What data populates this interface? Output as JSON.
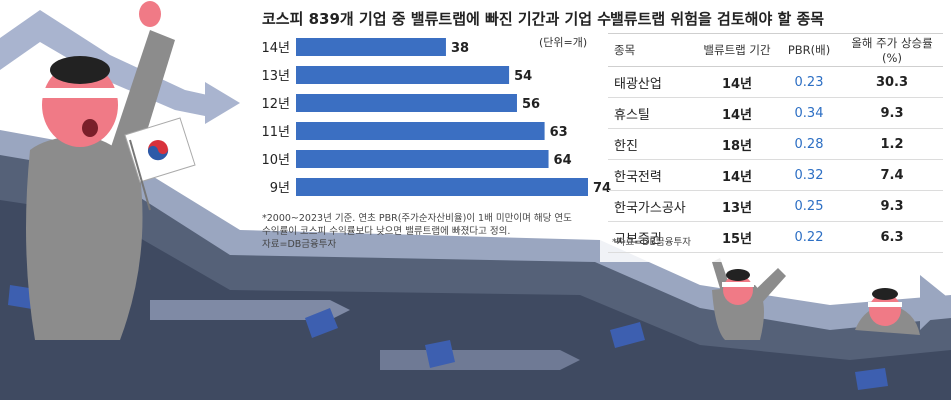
{
  "chart_data": [
    {
      "type": "bar",
      "title": "코스피 839개 기업 중 밸류트랩에 빠진 기간과 기업 수",
      "unit": "(단위=개)",
      "categories": [
        "14년",
        "13년",
        "12년",
        "11년",
        "10년",
        "9년"
      ],
      "values": [
        38,
        54,
        56,
        63,
        64,
        74
      ],
      "bar_color": "#3b6fc2",
      "xlim": [
        0,
        74
      ],
      "orientation": "horizontal",
      "note": [
        "*2000~2023년 기준. 연초 PBR(주가순자산비율)이 1배 미만이며 해당 연도",
        "수익률이 코스피 수익률보다 낮으면 밸류트랩에 빠졌다고 정의.",
        "자료=DB금융투자"
      ]
    },
    {
      "type": "table",
      "title": "밸류트랩 위험을 검토해야 할 종목",
      "columns": [
        "종목",
        "밸류트랩 기간",
        "PBR(배)",
        "올해 주가 상승률(%)"
      ],
      "rows": [
        [
          "태광산업",
          "14년",
          "0.23",
          "30.3"
        ],
        [
          "휴스틸",
          "14년",
          "0.34",
          "9.3"
        ],
        [
          "한진",
          "18년",
          "0.28",
          "1.2"
        ],
        [
          "한국전력",
          "14년",
          "0.32",
          "7.4"
        ],
        [
          "한국가스공사",
          "13년",
          "0.25",
          "9.3"
        ],
        [
          "교보증권",
          "15년",
          "0.22",
          "6.3"
        ]
      ],
      "source": "*자료=DB금융투자"
    }
  ]
}
